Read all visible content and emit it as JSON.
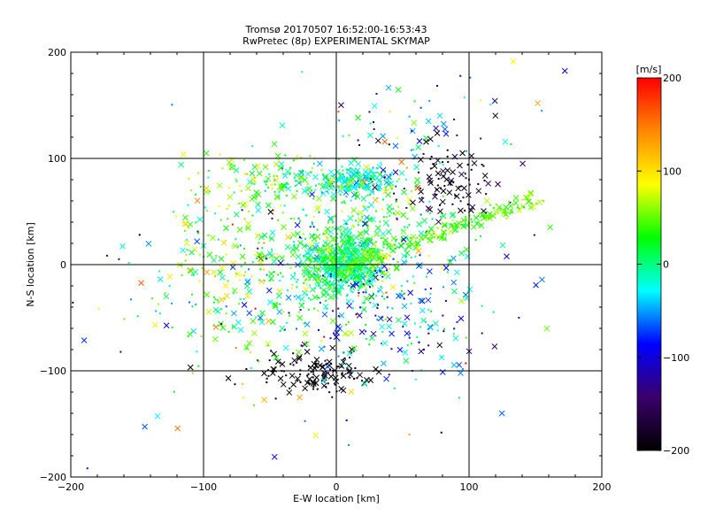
{
  "chart_data": {
    "type": "scatter",
    "title": "Tromsø 20170507 16:52:00-16:53:43",
    "subtitle": "RwPretec (8p) EXPERIMENTAL SKYMAP",
    "xlabel": "E-W location [km]",
    "ylabel": "N-S location [km]",
    "xlim": [
      -200,
      200
    ],
    "ylim": [
      -200,
      200
    ],
    "xticks": [
      -200,
      -100,
      0,
      100,
      200
    ],
    "yticks": [
      -200,
      -100,
      0,
      100,
      200
    ],
    "xtick_labels": [
      "−200",
      "−100",
      "0",
      "100",
      "200"
    ],
    "ytick_labels": [
      "−200",
      "−100",
      "0",
      "100",
      "200"
    ],
    "grid": true,
    "grid_lines": [
      -100,
      0,
      100
    ],
    "marker_styles": [
      "x",
      "dot"
    ],
    "colorbar": {
      "label": "[m/s]",
      "range": [
        -200,
        200
      ],
      "ticks": [
        200,
        100,
        0,
        -100,
        -200
      ],
      "tick_labels": [
        "200",
        "100",
        "0",
        "−100",
        "−200"
      ],
      "colormap": [
        "#000000",
        "#3a006b",
        "#0000ff",
        "#00ffff",
        "#00ff00",
        "#ffff00",
        "#ff8800",
        "#ff0000"
      ]
    },
    "clusters": [
      {
        "center": [
          5,
          0
        ],
        "spread": [
          14,
          14
        ],
        "count": 550,
        "value": 5,
        "value_spread": 25
      },
      {
        "center": [
          20,
          25
        ],
        "spread": [
          30,
          25
        ],
        "count": 260,
        "value": 20,
        "value_spread": 40
      },
      {
        "center": [
          15,
          78
        ],
        "spread": [
          14,
          7
        ],
        "count": 180,
        "value": -20,
        "value_spread": 22
      },
      {
        "center": [
          -45,
          78
        ],
        "spread": [
          35,
          12
        ],
        "count": 160,
        "value": 35,
        "value_spread": 40
      },
      {
        "center": [
          85,
          75
        ],
        "spread": [
          18,
          15
        ],
        "count": 90,
        "value": -190,
        "value_spread": 25
      },
      {
        "center": [
          -15,
          -102
        ],
        "spread": [
          18,
          10
        ],
        "count": 130,
        "value": -200,
        "value_spread": 10
      },
      {
        "center": [
          40,
          -45
        ],
        "spread": [
          40,
          30
        ],
        "count": 190,
        "value": -55,
        "value_spread": 55
      },
      {
        "center": [
          -70,
          10
        ],
        "spread": [
          38,
          30
        ],
        "count": 170,
        "value": 35,
        "value_spread": 45
      },
      {
        "center": [
          -55,
          -35
        ],
        "spread": [
          45,
          30
        ],
        "count": 130,
        "value": 10,
        "value_spread": 60
      },
      {
        "center": [
          60,
          120
        ],
        "spread": [
          35,
          30
        ],
        "count": 70,
        "value": -60,
        "value_spread": 80
      },
      {
        "center": [
          0,
          0
        ],
        "spread": [
          110,
          100
        ],
        "count": 170,
        "value": 0,
        "value_spread": 110
      }
    ],
    "streaks": [
      {
        "from": [
          10,
          0
        ],
        "to": [
          150,
          62
        ],
        "count": 200,
        "width": 4,
        "value": 45,
        "value_spread": 18
      }
    ]
  }
}
